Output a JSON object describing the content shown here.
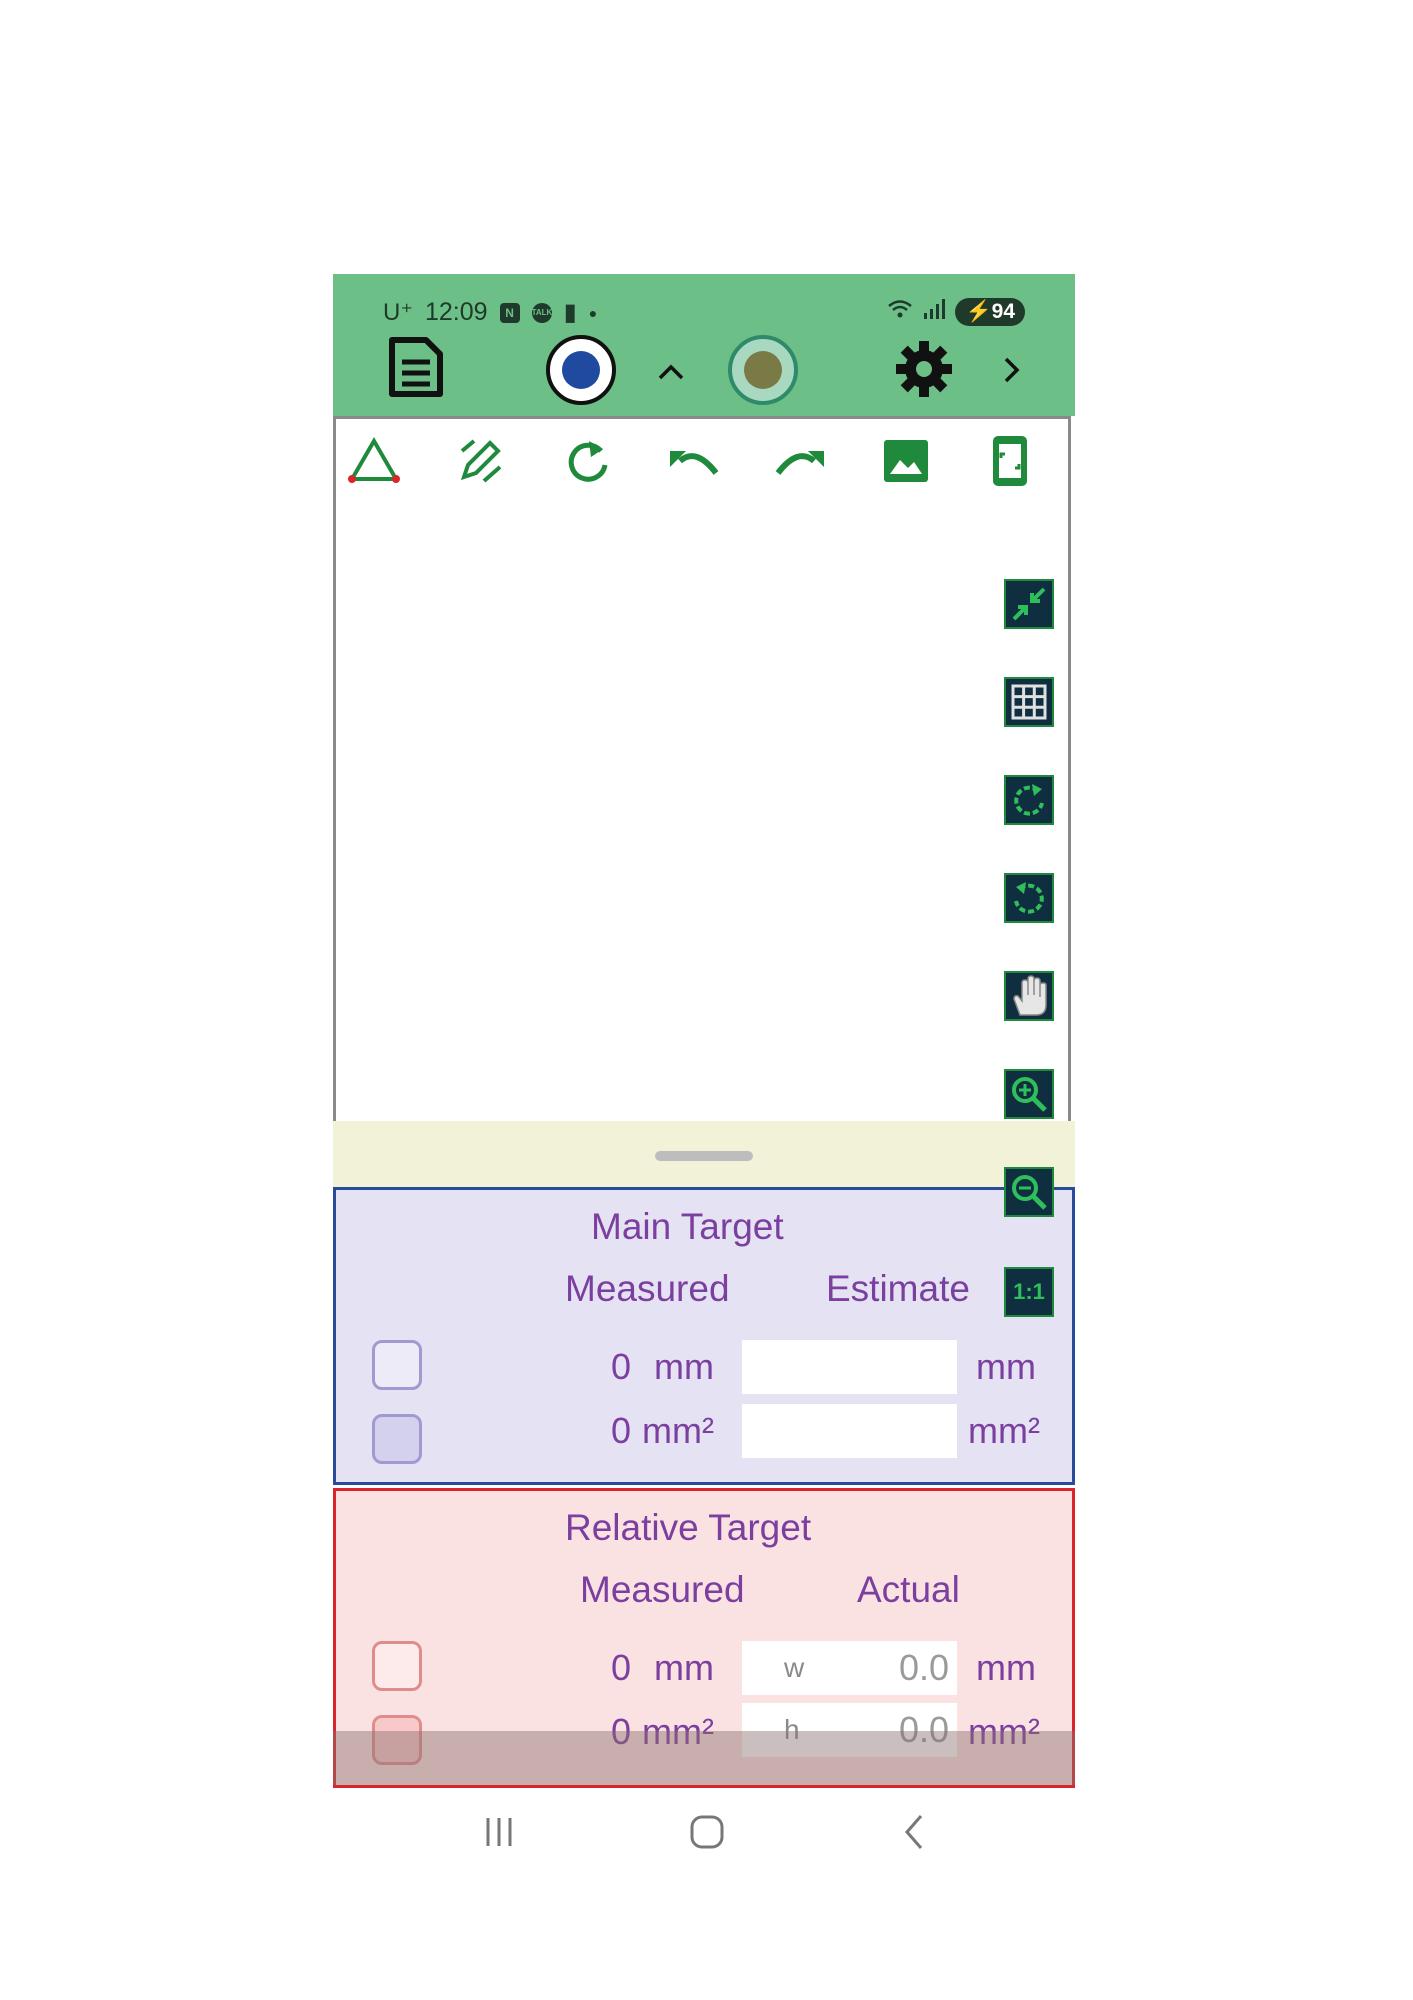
{
  "status_bar": {
    "carrier": "U⁺",
    "time": "12:09",
    "icon_names": [
      "naver-icon",
      "talk-icon",
      "message-icon",
      "dot-icon"
    ],
    "battery": "94"
  },
  "toolbar": {
    "icons": [
      "document-icon",
      "color-blue-icon",
      "chevron-up-icon",
      "color-olive-icon",
      "gear-icon",
      "chevron-right-icon"
    ]
  },
  "tools": [
    "triangle-icon",
    "edit-pencil-icon",
    "refresh-icon",
    "undo-icon",
    "redo-icon",
    "image-icon",
    "fit-screen-icon"
  ],
  "side_tools": [
    "compress-icon",
    "grid-icon",
    "rotate-cw-icon",
    "rotate-ccw-icon",
    "hand-icon",
    "zoom-in-icon",
    "zoom-out-icon",
    "one-to-one-icon"
  ],
  "one_to_one_label": "1:1",
  "main_target": {
    "title": "Main Target",
    "col_measured": "Measured",
    "col_estimate": "Estimate",
    "row1": {
      "value": "0",
      "unit": "mm",
      "estimate": "",
      "est_unit": "mm"
    },
    "row2": {
      "value": "0",
      "unit": "mm²",
      "estimate": "",
      "est_unit": "mm²"
    }
  },
  "relative_target": {
    "title": "Relative Target",
    "col_measured": "Measured",
    "col_actual": "Actual",
    "row1": {
      "value": "0",
      "unit": "mm",
      "field_label": "w",
      "actual": "0.0",
      "act_unit": "mm"
    },
    "row2": {
      "value": "0",
      "unit": "mm²",
      "field_label": "h",
      "actual": "0.0",
      "act_unit": "mm²"
    }
  },
  "colors": {
    "topbar": "#6cbf86",
    "tool_green": "#1f8a3c",
    "main_border": "#2a4a9a",
    "relative_border": "#d8262a",
    "label_purple": "#7b3fa0"
  }
}
